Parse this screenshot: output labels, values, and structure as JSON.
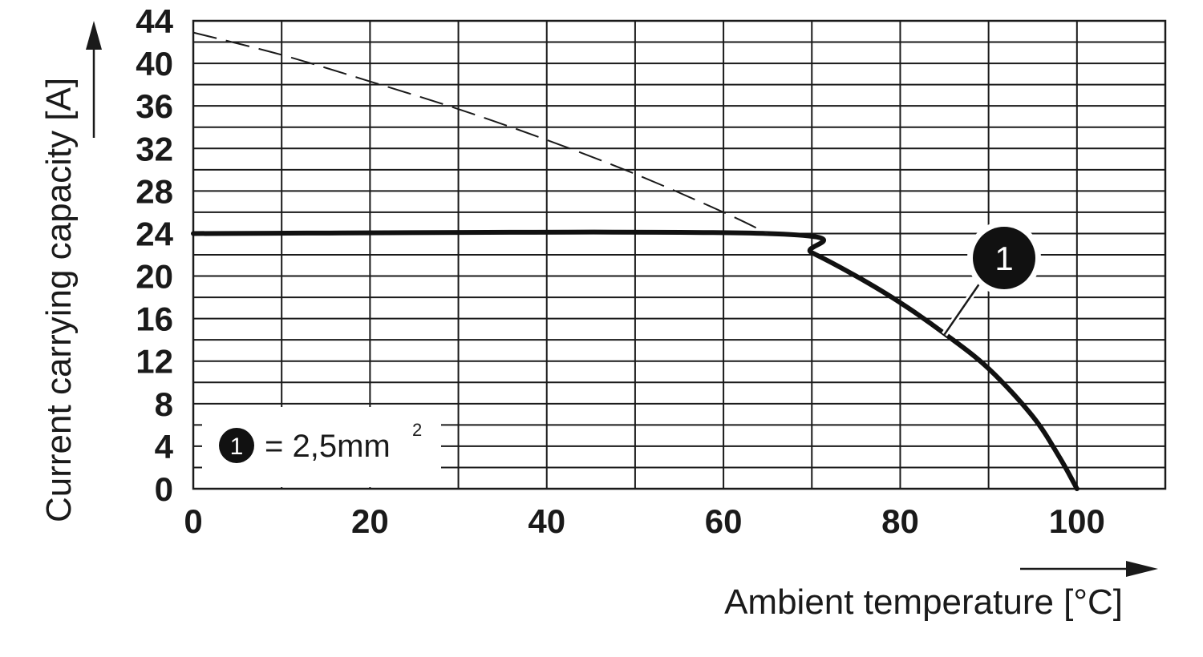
{
  "chart_data": {
    "type": "line",
    "xlabel": "Ambient temperature [°C]",
    "ylabel": "Current carrying capacity [A]",
    "xlim": [
      0,
      110
    ],
    "ylim": [
      0,
      44
    ],
    "x_ticks": [
      "0",
      "20",
      "40",
      "60",
      "80",
      "100"
    ],
    "x_tick_values": [
      0,
      20,
      40,
      60,
      80,
      100
    ],
    "y_ticks": [
      "0",
      "4",
      "8",
      "12",
      "16",
      "20",
      "24",
      "28",
      "32",
      "36",
      "40",
      "44"
    ],
    "y_tick_values": [
      0,
      4,
      8,
      12,
      16,
      20,
      24,
      28,
      32,
      36,
      40,
      44
    ],
    "grid": true,
    "grid_x_step": 10,
    "grid_y_step": 2,
    "series": [
      {
        "label": "1",
        "style": "solid-thick",
        "x": [
          0,
          65,
          70,
          75,
          80,
          85,
          90,
          95,
          98,
          100
        ],
        "y": [
          24,
          24,
          22.2,
          20.0,
          17.5,
          14.6,
          11.3,
          6.8,
          3.0,
          0
        ]
      },
      {
        "style": "dashed",
        "x": [
          0,
          10,
          20,
          30,
          40,
          50,
          60,
          65
        ],
        "y": [
          42.9,
          40.8,
          38.3,
          35.7,
          32.8,
          29.6,
          26.0,
          24
        ]
      }
    ],
    "marker": {
      "label": "1",
      "anchor_x": 85,
      "anchor_y": 14.5
    },
    "legend": {
      "marker": "1",
      "text": "= 2,5mm",
      "superscript": "2",
      "placement": "bottom-left"
    }
  }
}
